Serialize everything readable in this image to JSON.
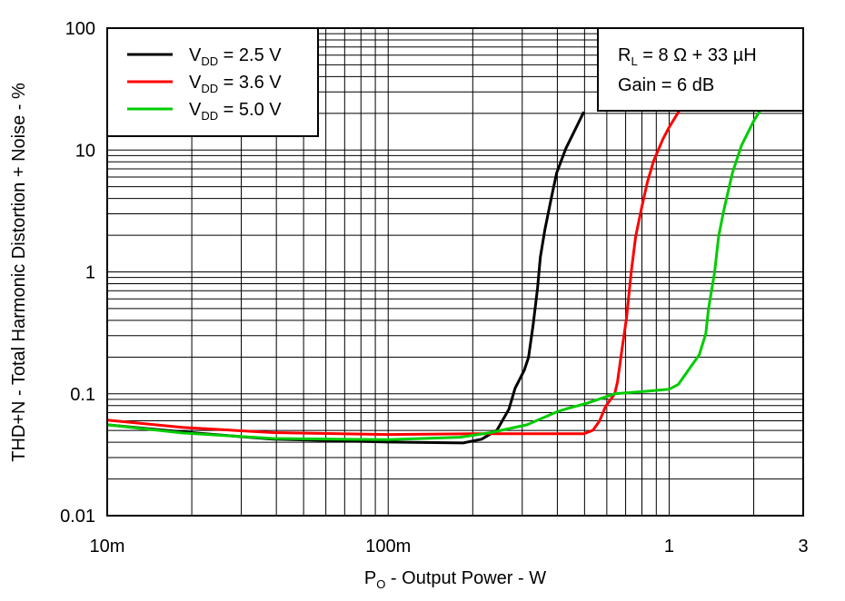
{
  "chart_data": {
    "type": "line",
    "x_scale": "log",
    "y_scale": "log",
    "xlim": [
      0.01,
      3
    ],
    "ylim": [
      0.01,
      100
    ],
    "grid": true,
    "legend_placement": "top-left",
    "xlabel": {
      "main": "P",
      "sub": "O",
      "rest": " - Output Power - W"
    },
    "ylabel": "THD+N - Total Harmonic Distortion + Noise - %",
    "x_ticks": [
      {
        "value": 0.01,
        "label": "10m"
      },
      {
        "value": 0.1,
        "label": "100m"
      },
      {
        "value": 1,
        "label": "1"
      },
      {
        "value": 3,
        "label": "3"
      }
    ],
    "y_ticks": [
      {
        "value": 100,
        "label": "100"
      },
      {
        "value": 10,
        "label": "10"
      },
      {
        "value": 1,
        "label": "1"
      },
      {
        "value": 0.1,
        "label": "0.1"
      },
      {
        "value": 0.01,
        "label": "0.01"
      }
    ],
    "annotation": {
      "line1_main": "R",
      "line1_sub": "L",
      "line1_rest": " = 8 Ω + 33 µH",
      "line2": "Gain = 6 dB"
    },
    "series": [
      {
        "name": "VDD = 2.5 V",
        "legend_main": "V",
        "legend_sub": "DD",
        "legend_rest": " = 2.5 V",
        "color": "#000000",
        "x": [
          0.01,
          0.0185,
          0.039,
          0.1,
          0.185,
          0.215,
          0.244,
          0.269,
          0.283,
          0.305,
          0.316,
          0.328,
          0.34,
          0.348,
          0.361,
          0.381,
          0.398,
          0.429,
          0.462,
          0.497
        ],
        "y": [
          0.0557,
          0.0486,
          0.0424,
          0.0402,
          0.0395,
          0.0424,
          0.0503,
          0.0747,
          0.111,
          0.156,
          0.199,
          0.369,
          0.734,
          1.32,
          2.2,
          4.09,
          6.5,
          10.3,
          14.6,
          20.6
        ]
      },
      {
        "name": "VDD = 3.6 V",
        "legend_main": "V",
        "legend_sub": "DD",
        "legend_rest": " = 3.6 V",
        "color": "#ff0000",
        "x": [
          0.01,
          0.0185,
          0.039,
          0.1,
          0.2,
          0.497,
          0.536,
          0.565,
          0.594,
          0.64,
          0.655,
          0.68,
          0.705,
          0.732,
          0.76,
          0.8,
          0.837,
          0.88,
          0.95,
          1.0,
          1.085
        ],
        "y": [
          0.0608,
          0.053,
          0.048,
          0.0463,
          0.047,
          0.047,
          0.0503,
          0.0597,
          0.0787,
          0.1,
          0.125,
          0.236,
          0.416,
          0.983,
          1.95,
          3.45,
          5.48,
          8.1,
          12.3,
          15.4,
          20.9
        ]
      },
      {
        "name": "VDD = 5.0 V",
        "legend_main": "V",
        "legend_sub": "DD",
        "legend_rest": " = 5.0 V",
        "color": "#00cc00",
        "x": [
          0.01,
          0.0185,
          0.039,
          0.1,
          0.18,
          0.232,
          0.312,
          0.398,
          0.429,
          0.513,
          0.64,
          0.837,
          1.0,
          1.077,
          1.28,
          1.35,
          1.38,
          1.45,
          1.5,
          1.56,
          1.68,
          1.81,
          2.0,
          2.12
        ],
        "y": [
          0.0557,
          0.0477,
          0.043,
          0.042,
          0.044,
          0.048,
          0.0557,
          0.071,
          0.075,
          0.084,
          0.1,
          0.105,
          0.109,
          0.119,
          0.209,
          0.311,
          0.494,
          0.983,
          1.95,
          3.1,
          6.5,
          10.9,
          17.3,
          21.6
        ]
      }
    ]
  }
}
